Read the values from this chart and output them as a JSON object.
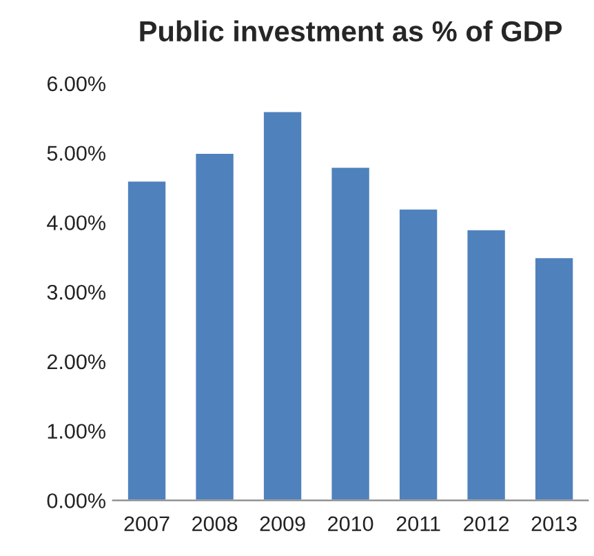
{
  "chart_data": {
    "type": "bar",
    "title": "Public investment as % of GDP",
    "categories": [
      "2007",
      "2008",
      "2009",
      "2010",
      "2011",
      "2012",
      "2013"
    ],
    "values": [
      4.6,
      5.0,
      5.6,
      4.8,
      4.2,
      3.9,
      3.5
    ],
    "color": "#4f81bd",
    "ylim": [
      0,
      6
    ],
    "yticks": [
      {
        "value": 0,
        "label": "0.00%"
      },
      {
        "value": 1,
        "label": "1.00%"
      },
      {
        "value": 2,
        "label": "2.00%"
      },
      {
        "value": 3,
        "label": "3.00%"
      },
      {
        "value": 4,
        "label": "4.00%"
      },
      {
        "value": 5,
        "label": "5.00%"
      },
      {
        "value": 6,
        "label": "6.00%"
      }
    ],
    "grid": false
  }
}
